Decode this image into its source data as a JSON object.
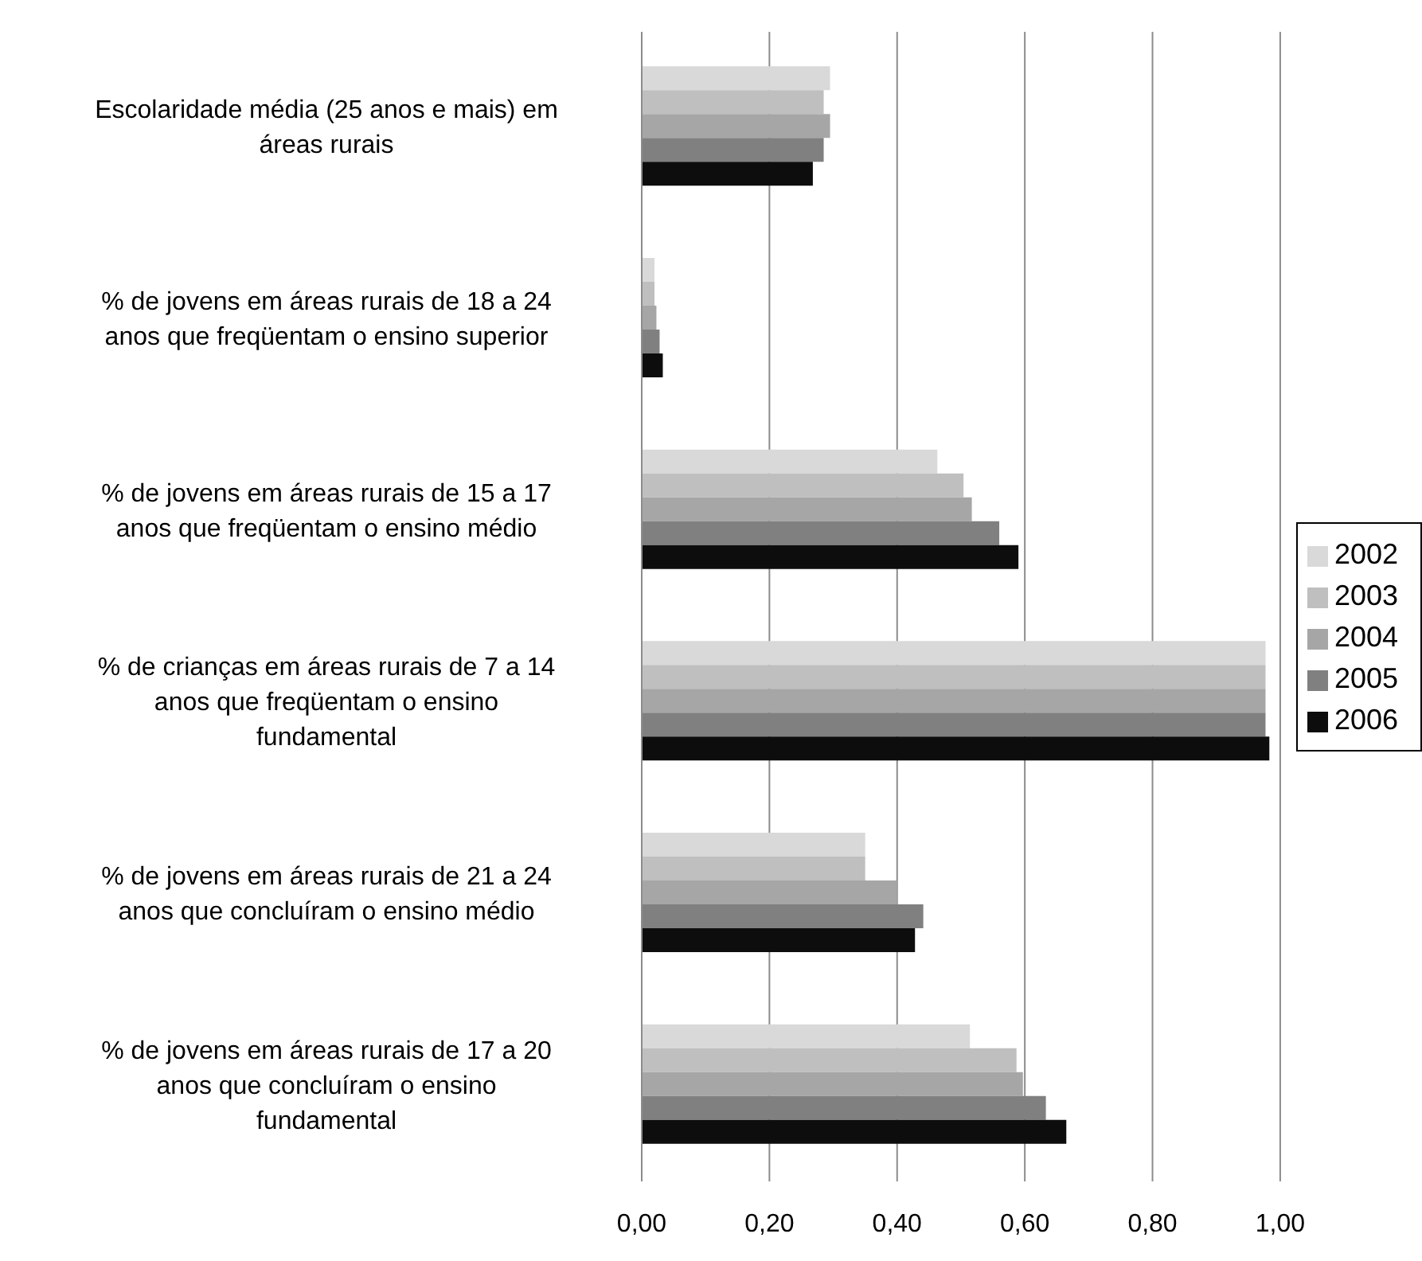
{
  "chart_data": {
    "type": "bar",
    "orientation": "horizontal",
    "categories": [
      "Escolaridade média (25 anos e mais) em áreas rurais",
      "% de jovens em áreas rurais de 18 a 24 anos que freqüentam o ensino superior",
      "% de jovens em áreas rurais de 15 a 17 anos que freqüentam o ensino médio",
      "% de crianças em áreas rurais de 7 a 14 anos que freqüentam o ensino fundamental",
      "% de jovens em áreas rurais de 21 a 24 anos que concluíram o ensino médio",
      "% de jovens em áreas rurais de 17 a 20 anos que concluíram o ensino fundamental"
    ],
    "series": [
      {
        "name": "2002",
        "color": "#d9d9d9",
        "values": [
          0.295,
          0.02,
          0.463,
          0.977,
          0.35,
          0.514
        ]
      },
      {
        "name": "2003",
        "color": "#bfbfbf",
        "values": [
          0.285,
          0.02,
          0.504,
          0.977,
          0.35,
          0.587
        ]
      },
      {
        "name": "2004",
        "color": "#a6a6a6",
        "values": [
          0.295,
          0.023,
          0.517,
          0.977,
          0.4,
          0.597
        ]
      },
      {
        "name": "2005",
        "color": "#808080",
        "values": [
          0.285,
          0.028,
          0.56,
          0.977,
          0.441,
          0.633
        ]
      },
      {
        "name": "2006",
        "color": "#0d0d0d",
        "values": [
          0.268,
          0.033,
          0.59,
          0.983,
          0.428,
          0.665
        ]
      }
    ],
    "xlim": [
      0,
      1
    ],
    "xticks": [
      {
        "value": 0,
        "label": "0,00"
      },
      {
        "value": 0.2,
        "label": "0,20"
      },
      {
        "value": 0.4,
        "label": "0,40"
      },
      {
        "value": 0.6,
        "label": "0,60"
      },
      {
        "value": 0.8,
        "label": "0,80"
      },
      {
        "value": 1,
        "label": "1,00"
      }
    ],
    "grid": "x",
    "legend": "right"
  }
}
